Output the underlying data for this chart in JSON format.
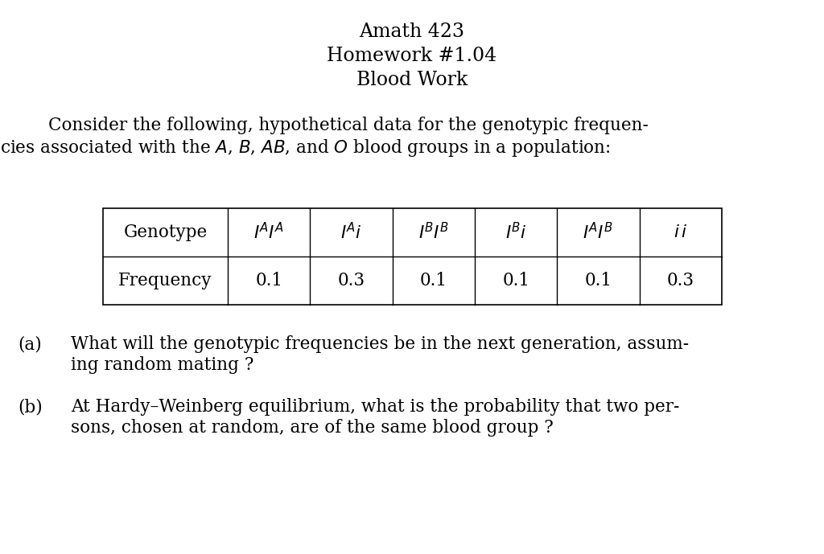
{
  "title_lines": [
    "Amath 423",
    "Homework #1.04",
    "Blood Work"
  ],
  "frequencies": [
    "0.1",
    "0.3",
    "0.1",
    "0.1",
    "0.1",
    "0.3"
  ],
  "question_a_line1": "What will the genotypic frequencies be in the next generation, assum-",
  "question_a_line2": "ing random mating ?",
  "question_b_line1": "At Hardy–Weinberg equilibrium, what is the probability that two per-",
  "question_b_line2": "sons, chosen at random, are of the same blood group ?",
  "bg_color": "#ffffff",
  "text_color": "#000000",
  "font_size_title": 17,
  "font_size_body": 15.5,
  "font_size_table_label": 15.5,
  "font_size_table_genotype": 15.5,
  "font_size_table_freq": 15.5
}
